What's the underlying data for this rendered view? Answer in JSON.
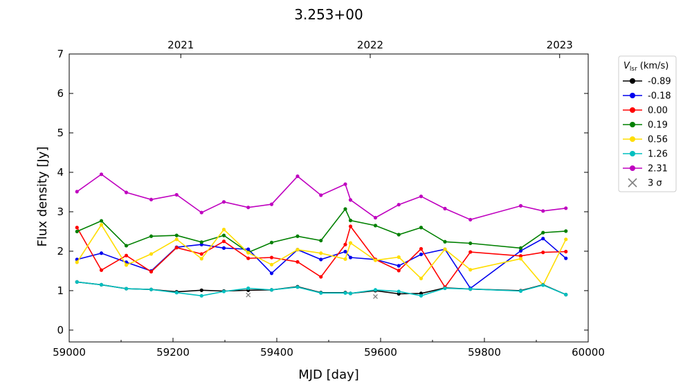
{
  "chart_data": {
    "type": "line",
    "title": "3.253+00",
    "xlabel": "MJD [day]",
    "ylabel": "Flux density [Jy]",
    "xlim": [
      59000,
      60000
    ],
    "ylim": [
      -0.3,
      7.0
    ],
    "xticks": [
      59000,
      59200,
      59400,
      59600,
      59800,
      60000
    ],
    "yticks": [
      0,
      1,
      2,
      3,
      4,
      5,
      6,
      7
    ],
    "top_axis": {
      "ticks": [
        {
          "x": 59215,
          "label": "2021"
        },
        {
          "x": 59580,
          "label": "2022"
        },
        {
          "x": 59945,
          "label": "2023"
        }
      ]
    },
    "legend": {
      "placement": "outside-right",
      "title": "V",
      "title_sub": "lsr",
      "title_unit": "(km/s)",
      "upper_limit_label": "3 σ"
    },
    "series": [
      {
        "name": "-0.89",
        "color": "#000000",
        "x": [
          59015,
          59062,
          59110,
          59158,
          59207,
          59255,
          59298,
          59345,
          59390,
          59440,
          59485,
          59532,
          59542,
          59590,
          59635,
          59678,
          59724,
          59773,
          59870,
          59913,
          59957
        ],
        "y": [
          1.22,
          1.15,
          1.05,
          1.03,
          0.97,
          1.01,
          0.99,
          1.01,
          1.02,
          1.1,
          0.95,
          0.95,
          0.93,
          1.0,
          0.92,
          0.93,
          1.07,
          1.04,
          1.0,
          1.15,
          0.9
        ]
      },
      {
        "name": "-0.18",
        "color": "#0000ee",
        "x": [
          59015,
          59062,
          59110,
          59158,
          59207,
          59255,
          59298,
          59345,
          59390,
          59440,
          59485,
          59532,
          59542,
          59590,
          59635,
          59678,
          59724,
          59773,
          59870,
          59913,
          59957
        ],
        "y": [
          1.79,
          1.95,
          1.72,
          1.5,
          2.1,
          2.17,
          2.08,
          2.05,
          1.44,
          2.04,
          1.79,
          1.99,
          1.84,
          1.79,
          1.63,
          1.92,
          2.05,
          1.06,
          2.01,
          2.32,
          1.82
        ]
      },
      {
        "name": "0.00",
        "color": "#ff0000",
        "x": [
          59015,
          59062,
          59110,
          59158,
          59207,
          59255,
          59298,
          59345,
          59390,
          59440,
          59485,
          59532,
          59542,
          59590,
          59635,
          59678,
          59724,
          59773,
          59870,
          59913,
          59957
        ],
        "y": [
          2.6,
          1.52,
          1.89,
          1.48,
          2.09,
          1.93,
          2.25,
          1.82,
          1.84,
          1.73,
          1.35,
          2.17,
          2.63,
          1.79,
          1.51,
          2.06,
          1.09,
          1.98,
          1.88,
          1.97,
          1.99
        ]
      },
      {
        "name": "0.19",
        "color": "#008000",
        "x": [
          59015,
          59062,
          59110,
          59158,
          59207,
          59255,
          59298,
          59345,
          59390,
          59440,
          59485,
          59532,
          59542,
          59590,
          59635,
          59678,
          59724,
          59773,
          59870,
          59913,
          59957
        ],
        "y": [
          2.5,
          2.77,
          2.14,
          2.38,
          2.4,
          2.23,
          2.4,
          1.97,
          2.22,
          2.38,
          2.27,
          3.07,
          2.78,
          2.65,
          2.42,
          2.6,
          2.24,
          2.2,
          2.08,
          2.47,
          2.51
        ]
      },
      {
        "name": "0.56",
        "color": "#ffdd00",
        "x": [
          59015,
          59062,
          59110,
          59158,
          59207,
          59255,
          59298,
          59345,
          59390,
          59440,
          59485,
          59532,
          59542,
          59590,
          59635,
          59678,
          59724,
          59773,
          59870,
          59913,
          59957
        ],
        "y": [
          1.72,
          2.67,
          1.65,
          1.93,
          2.3,
          1.81,
          2.55,
          1.96,
          1.66,
          2.04,
          1.95,
          1.8,
          2.21,
          1.77,
          1.85,
          1.31,
          2.05,
          1.53,
          1.81,
          1.14,
          2.3
        ]
      },
      {
        "name": "1.26",
        "color": "#00bfbf",
        "x": [
          59015,
          59062,
          59110,
          59158,
          59207,
          59255,
          59298,
          59345,
          59390,
          59440,
          59485,
          59532,
          59542,
          59590,
          59635,
          59678,
          59724,
          59773,
          59870,
          59913,
          59957
        ],
        "y": [
          1.22,
          1.15,
          1.05,
          1.03,
          0.95,
          0.87,
          0.98,
          1.06,
          1.02,
          1.09,
          0.94,
          0.94,
          0.93,
          1.02,
          0.98,
          0.87,
          1.06,
          1.04,
          0.99,
          1.14,
          0.9
        ]
      },
      {
        "name": "2.31",
        "color": "#bf00bf",
        "x": [
          59015,
          59062,
          59110,
          59158,
          59207,
          59255,
          59298,
          59345,
          59390,
          59440,
          59485,
          59532,
          59542,
          59590,
          59635,
          59678,
          59724,
          59773,
          59870,
          59913,
          59957
        ],
        "y": [
          3.51,
          3.95,
          3.49,
          3.31,
          3.43,
          2.98,
          3.25,
          3.11,
          3.19,
          3.9,
          3.42,
          3.7,
          3.3,
          2.85,
          3.18,
          3.39,
          3.08,
          2.8,
          3.15,
          3.02,
          3.09
        ]
      }
    ],
    "upper_limits": {
      "marker": "x",
      "color": "#808080",
      "points": [
        {
          "x": 59345,
          "y": 0.89
        },
        {
          "x": 59590,
          "y": 0.85
        }
      ]
    }
  }
}
